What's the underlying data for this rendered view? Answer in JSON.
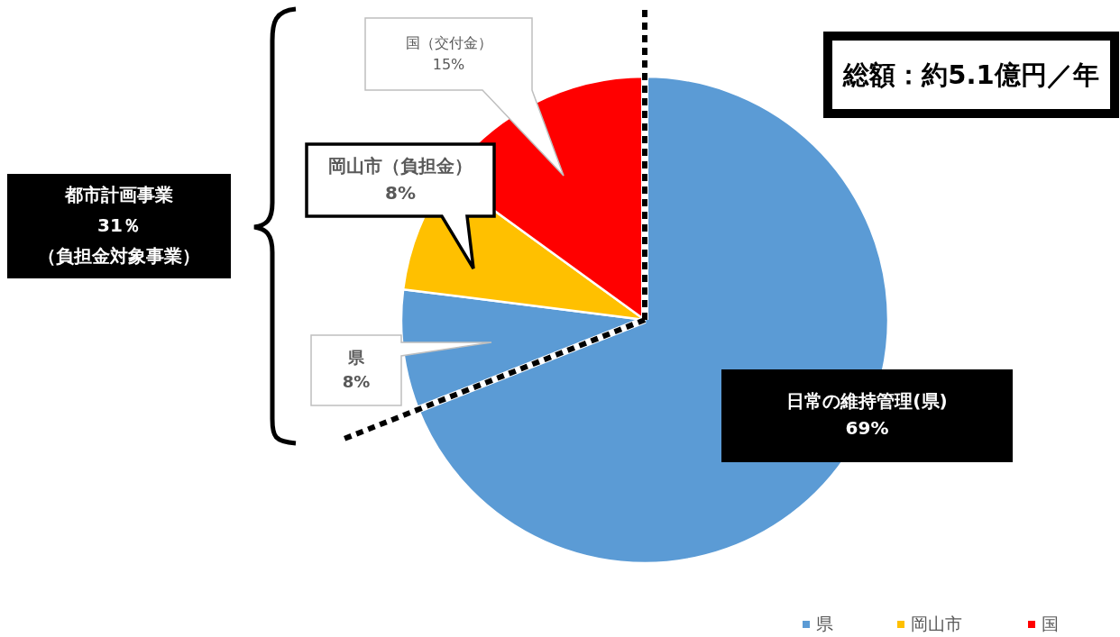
{
  "chart_data": {
    "type": "pie",
    "title": "総額：約5.1億円／年",
    "categories": [
      "県",
      null,
      "岡山市",
      "国"
    ],
    "values": [
      69,
      8,
      8,
      15
    ],
    "colors": [
      "#5b9bd5",
      "#5b9bd5",
      "#ffc000",
      "#ff0000"
    ],
    "value_labels": [
      "日常の維持管理(県)\n69%",
      "県\n8%",
      "岡山市（負担金）\n8%",
      "国（交付金）\n15%"
    ],
    "annotations": [
      "都市計画事業",
      "31％",
      "（負担金対象事業）"
    ],
    "legend": "bottom right"
  }
}
